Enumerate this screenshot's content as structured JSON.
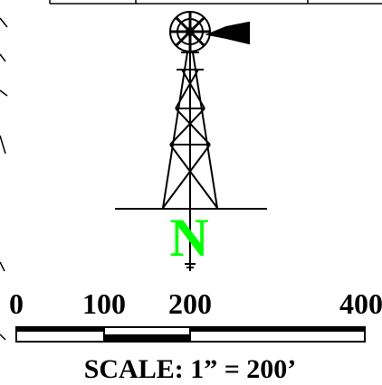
{
  "north_arrow": {
    "label": "N"
  },
  "scale_bar": {
    "ticks": [
      "0",
      "100",
      "200",
      "400"
    ],
    "caption": "SCALE: 1” = 200’"
  }
}
